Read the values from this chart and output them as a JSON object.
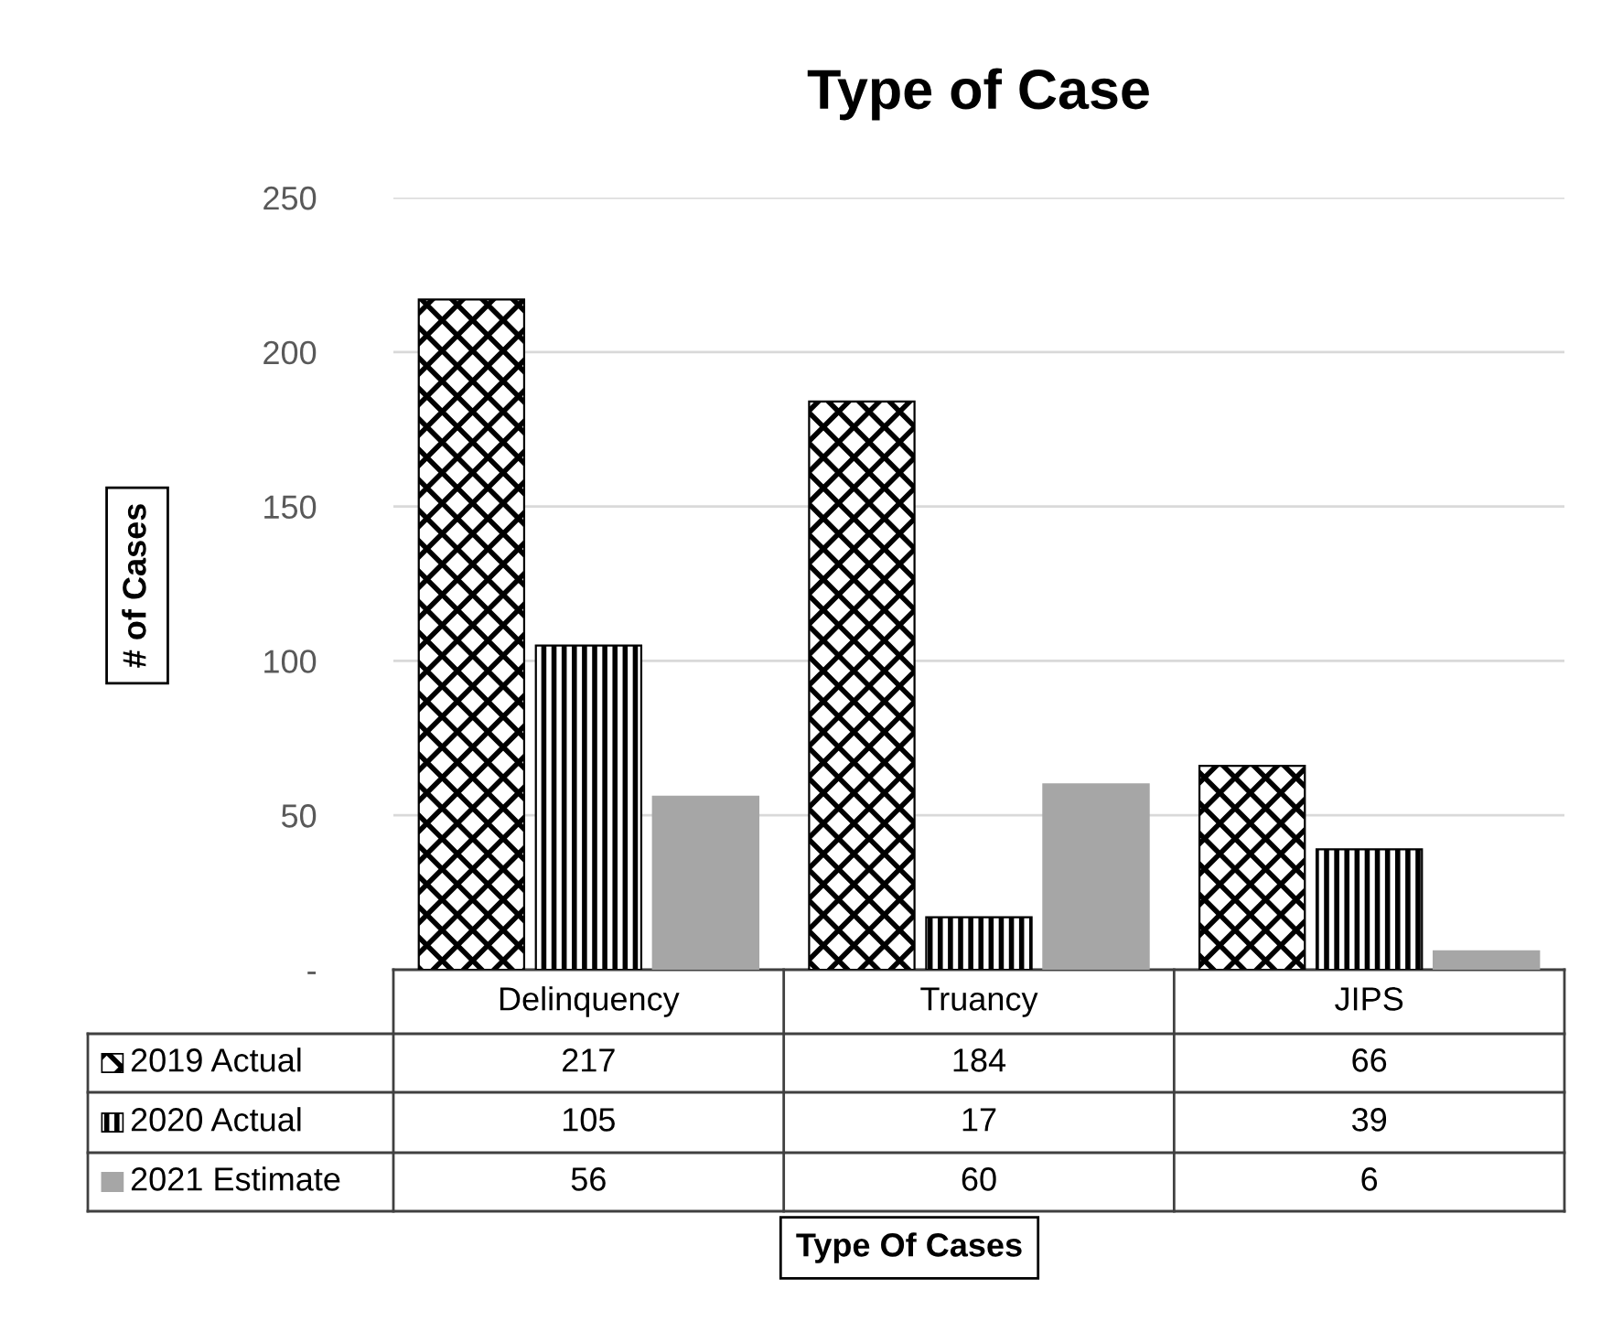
{
  "chart_data": {
    "type": "bar",
    "title": "Type of Case",
    "annotations": [
      "Type Of Cases"
    ],
    "ylabel": "# of Cases",
    "categories": [
      "Delinquency",
      "Truancy",
      "JIPS"
    ],
    "series": [
      {
        "name": "2019 Actual",
        "color": "#000000",
        "values": [
          217,
          184,
          66
        ]
      },
      {
        "name": "2020 Actual",
        "color": "#000000",
        "values": [
          105,
          17,
          39
        ]
      },
      {
        "name": "2021 Estimate",
        "color": "#a6a6a6",
        "values": [
          56,
          60,
          6
        ]
      }
    ],
    "ylim": [
      0,
      250
    ],
    "yticks": [
      {
        "value": 0,
        "label": "-"
      },
      50,
      100,
      150,
      200,
      250
    ],
    "grid": "y",
    "legend": "bottom",
    "data_labels": true
  }
}
